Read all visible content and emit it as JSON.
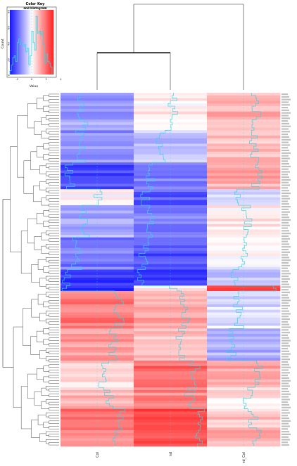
{
  "chart_data": {
    "type": "heatmap",
    "columns": [
      "Col",
      "nd",
      "nd_Col"
    ],
    "color_key": {
      "title": "Color Key",
      "subtitle": "and Histogram",
      "xlabel": "Value",
      "ylabel": "Count",
      "x_ticks": [
        "-2",
        "0",
        "2",
        "4"
      ],
      "y_ticks": [
        "0",
        "20",
        "40",
        "60",
        "80"
      ],
      "colors": {
        "low": "#1010ff",
        "mid": "#ffffff",
        "high": "#ff1f1f",
        "trace": "#33d6e6"
      }
    },
    "row_blocks": [
      {
        "n": 14,
        "values": [
          -1.2,
          0.2,
          1.0
        ]
      },
      {
        "n": 12,
        "values": [
          -1.4,
          -0.8,
          0.9
        ]
      },
      {
        "n": 10,
        "values": [
          -2.2,
          -1.6,
          1.1
        ]
      },
      {
        "n": 6,
        "values": [
          0.1,
          -2.0,
          -0.3
        ]
      },
      {
        "n": 12,
        "values": [
          -1.0,
          -1.5,
          0.3
        ]
      },
      {
        "n": 12,
        "values": [
          -1.7,
          -2.2,
          -0.1
        ]
      },
      {
        "n": 6,
        "values": [
          -2.6,
          -2.4,
          -0.6
        ]
      },
      {
        "n": 2,
        "values": [
          -2.8,
          0.2,
          2.6
        ]
      },
      {
        "n": 14,
        "values": [
          1.8,
          1.2,
          -0.4
        ]
      },
      {
        "n": 12,
        "values": [
          1.3,
          0.8,
          -1.0
        ]
      },
      {
        "n": 10,
        "values": [
          0.6,
          2.0,
          1.3
        ]
      },
      {
        "n": 8,
        "values": [
          0.9,
          1.6,
          0.4
        ]
      },
      {
        "n": 8,
        "values": [
          2.1,
          2.6,
          0.8
        ]
      },
      {
        "n": 6,
        "values": [
          1.5,
          2.3,
          1.1
        ]
      }
    ]
  }
}
